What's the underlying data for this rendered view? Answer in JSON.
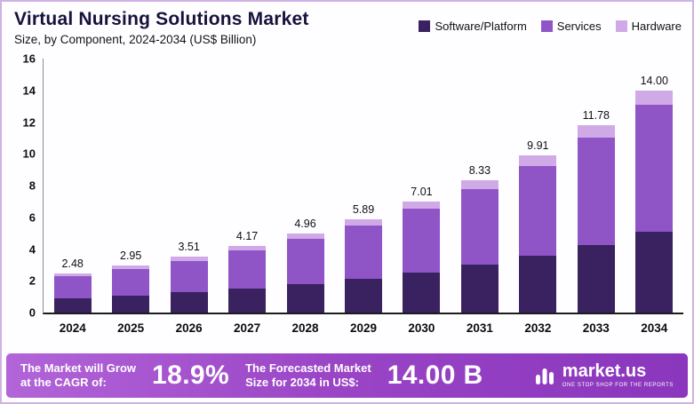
{
  "page": {
    "title": "Virtual Nursing Solutions Market",
    "subtitle": "Size, by Component, 2024-2034 (US$ Billion)"
  },
  "legend": [
    {
      "label": "Software/Platform",
      "color": "#3a2160"
    },
    {
      "label": "Services",
      "color": "#8f55c7"
    },
    {
      "label": "Hardware",
      "color": "#cfaae6"
    }
  ],
  "chart_data": {
    "type": "bar",
    "stacked": true,
    "title": "Virtual Nursing Solutions Market Size, by Component, 2024-2034 (US$ Billion)",
    "categories": [
      "2024",
      "2025",
      "2026",
      "2027",
      "2028",
      "2029",
      "2030",
      "2031",
      "2032",
      "2033",
      "2034"
    ],
    "series": [
      {
        "name": "Software/Platform",
        "color": "#3a2160",
        "values": [
          0.9,
          1.07,
          1.27,
          1.51,
          1.8,
          2.13,
          2.54,
          3.02,
          3.59,
          4.27,
          5.07
        ]
      },
      {
        "name": "Services",
        "color": "#8f55c7",
        "values": [
          1.41,
          1.68,
          2.0,
          2.38,
          2.83,
          3.37,
          4.01,
          4.76,
          5.67,
          6.74,
          8.01
        ]
      },
      {
        "name": "Hardware",
        "color": "#cfaae6",
        "values": [
          0.17,
          0.2,
          0.24,
          0.28,
          0.33,
          0.39,
          0.46,
          0.55,
          0.65,
          0.77,
          0.92
        ]
      }
    ],
    "totals": [
      2.48,
      2.95,
      3.51,
      4.17,
      4.96,
      5.89,
      7.01,
      8.33,
      9.91,
      11.78,
      14.0
    ],
    "xlabel": "",
    "ylabel": "",
    "ylim": [
      0,
      16
    ],
    "ytick_step": 2,
    "grid": false,
    "legend_position": "top-right"
  },
  "banner": {
    "cagr_line1": "The Market will Grow",
    "cagr_line2": "at the CAGR of:",
    "cagr_value": "18.9%",
    "forecast_line1": "The Forecasted Market",
    "forecast_line2": "Size for 2034 in US$:",
    "forecast_value": "14.00 B",
    "logo_text": "market.us",
    "logo_tagline": "ONE STOP SHOP FOR THE REPORTS"
  }
}
